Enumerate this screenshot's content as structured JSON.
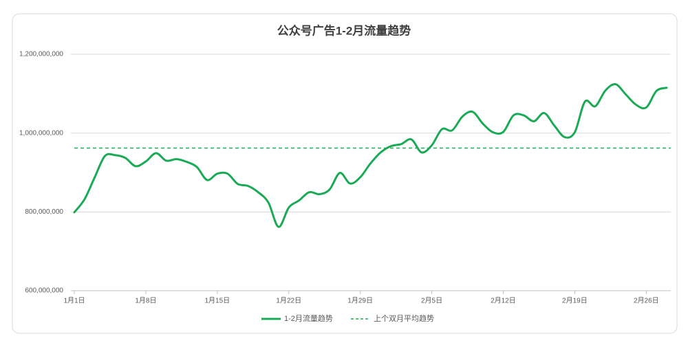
{
  "chart_data": {
    "type": "line",
    "title": "公众号广告1-2月流量趋势",
    "categories": [
      "1月1日",
      null,
      null,
      null,
      null,
      null,
      null,
      "1月8日",
      null,
      null,
      null,
      null,
      null,
      null,
      "1月15日",
      null,
      null,
      null,
      null,
      null,
      null,
      "1月22日",
      null,
      null,
      null,
      null,
      null,
      null,
      "1月29日",
      null,
      null,
      null,
      null,
      null,
      null,
      "2月5日",
      null,
      null,
      null,
      null,
      null,
      null,
      "2月12日",
      null,
      null,
      null,
      null,
      null,
      null,
      "2月19日",
      null,
      null,
      null,
      null,
      null,
      null,
      "2月26日",
      null,
      null
    ],
    "series": [
      {
        "name": "1-2月流量趋势",
        "color": "#1aaa55",
        "values": [
          799000000,
          832000000,
          888000000,
          942000000,
          944000000,
          937000000,
          916000000,
          928000000,
          949000000,
          930000000,
          934000000,
          927000000,
          914000000,
          881000000,
          897000000,
          897000000,
          871000000,
          866000000,
          850000000,
          824000000,
          762000000,
          811000000,
          829000000,
          850000000,
          845000000,
          857000000,
          899000000,
          872000000,
          888000000,
          923000000,
          951000000,
          967000000,
          972000000,
          984000000,
          951000000,
          969000000,
          1010000000,
          1007000000,
          1042000000,
          1054000000,
          1024000000,
          1002000000,
          1003000000,
          1045000000,
          1045000000,
          1030000000,
          1051000000,
          1019000000,
          990000000,
          1002000000,
          1080000000,
          1068000000,
          1108000000,
          1124000000,
          1098000000,
          1072000000,
          1065000000,
          1107000000,
          1115000000
        ]
      }
    ],
    "reference_lines": [
      {
        "name": "上个双月平均趋势",
        "color": "#1aaa55",
        "value": 962000000,
        "dashed": true
      }
    ],
    "ylim": [
      600000000,
      1200000000
    ],
    "yticks": [
      {
        "value": 600000000,
        "label": "600,000,000"
      },
      {
        "value": 800000000,
        "label": "800,000,000"
      },
      {
        "value": 1000000000,
        "label": "1,000,000,000"
      },
      {
        "value": 1200000000,
        "label": "1,200,000,000"
      }
    ],
    "grid": true,
    "legend": "bottom"
  }
}
